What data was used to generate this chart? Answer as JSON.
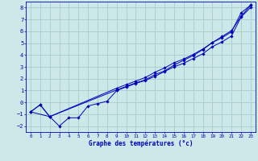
{
  "xlabel": "Graphe des températures (°c)",
  "background_color": "#cce8e8",
  "grid_color": "#aacccc",
  "line_color": "#0000bb",
  "xlim": [
    -0.5,
    23.5
  ],
  "ylim": [
    -2.5,
    8.5
  ],
  "xticks": [
    0,
    1,
    2,
    3,
    4,
    5,
    6,
    7,
    8,
    9,
    10,
    11,
    12,
    13,
    14,
    15,
    16,
    17,
    18,
    19,
    20,
    21,
    22,
    23
  ],
  "yticks": [
    -2,
    -1,
    0,
    1,
    2,
    3,
    4,
    5,
    6,
    7,
    8
  ],
  "series1_x": [
    0,
    1,
    2,
    3,
    4,
    5,
    6,
    7,
    8,
    9,
    10,
    11,
    12,
    13,
    14,
    15,
    16,
    17,
    18,
    19,
    20,
    21,
    22,
    23
  ],
  "series1_y": [
    -0.8,
    -0.2,
    -1.2,
    -2.0,
    -1.3,
    -1.3,
    -0.3,
    -0.1,
    0.1,
    1.0,
    1.3,
    1.6,
    1.85,
    2.2,
    2.6,
    3.0,
    3.3,
    3.7,
    4.1,
    4.7,
    5.1,
    5.6,
    7.2,
    8.0
  ],
  "series2_x": [
    0,
    1,
    2,
    9,
    10,
    11,
    12,
    13,
    14,
    15,
    16,
    17,
    18,
    19,
    20,
    21,
    22,
    23
  ],
  "series2_y": [
    -0.8,
    -0.2,
    -1.2,
    1.2,
    1.5,
    1.8,
    2.1,
    2.55,
    2.9,
    3.35,
    3.65,
    4.05,
    4.5,
    5.05,
    5.45,
    5.95,
    7.55,
    8.2
  ],
  "series3_x": [
    0,
    2,
    9,
    10,
    11,
    12,
    13,
    14,
    15,
    16,
    17,
    18,
    19,
    20,
    21,
    22,
    23
  ],
  "series3_y": [
    -0.8,
    -1.2,
    1.05,
    1.35,
    1.65,
    1.9,
    2.35,
    2.65,
    3.15,
    3.55,
    3.95,
    4.45,
    5.05,
    5.55,
    6.05,
    7.25,
    8.2
  ]
}
